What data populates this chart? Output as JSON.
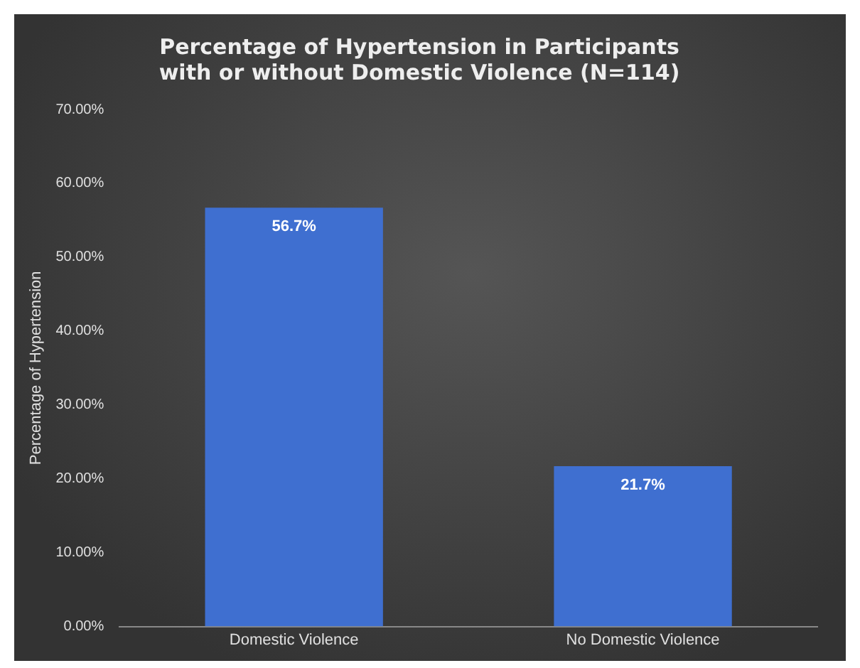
{
  "chart_data": {
    "type": "bar",
    "title": "Percentage of Hypertension in Participants with or without Domestic Violence (N=114)",
    "ylabel": "Percentage of Hypertension",
    "categories": [
      "Domestic Violence",
      "No Domestic Violence"
    ],
    "values": [
      56.7,
      21.7
    ],
    "value_labels": [
      "56.7%",
      "21.7%"
    ],
    "color": "#3f6fd0",
    "ylim": [
      0,
      70
    ],
    "yticks": [
      {
        "value": 0,
        "label": "0.00%"
      },
      {
        "value": 10,
        "label": "10.00%"
      },
      {
        "value": 20,
        "label": "20.00%"
      },
      {
        "value": 30,
        "label": "30.00%"
      },
      {
        "value": 40,
        "label": "40.00%"
      },
      {
        "value": 50,
        "label": "50.00%"
      },
      {
        "value": 60,
        "label": "60.00%"
      },
      {
        "value": 70,
        "label": "70.00%"
      }
    ],
    "grid": false,
    "legend": false
  }
}
